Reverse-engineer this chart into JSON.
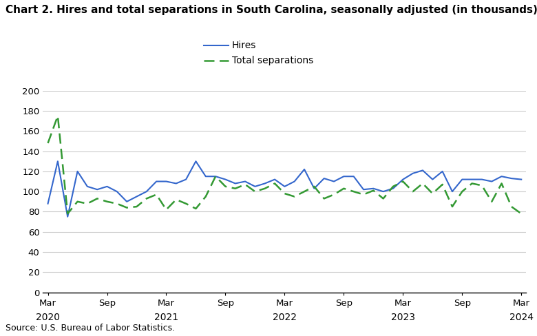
{
  "title": "Chart 2. Hires and total separations in South Carolina, seasonally adjusted (in thousands)",
  "source": "Source: U.S. Bureau of Labor Statistics.",
  "hires": [
    88,
    130,
    75,
    120,
    105,
    102,
    105,
    100,
    90,
    95,
    100,
    110,
    110,
    108,
    112,
    130,
    115,
    115,
    112,
    108,
    110,
    105,
    108,
    112,
    105,
    110,
    122,
    103,
    113,
    110,
    115,
    115,
    102,
    103,
    100,
    103,
    112,
    118,
    121,
    112,
    120,
    100,
    112,
    112,
    112,
    110,
    115,
    113,
    112
  ],
  "separations": [
    148,
    175,
    78,
    90,
    88,
    93,
    90,
    88,
    84,
    85,
    93,
    97,
    82,
    92,
    88,
    83,
    95,
    115,
    105,
    103,
    107,
    100,
    103,
    108,
    98,
    95,
    100,
    105,
    93,
    97,
    103,
    100,
    97,
    101,
    93,
    105,
    110,
    100,
    108,
    98,
    107,
    85,
    100,
    108,
    106,
    90,
    108,
    85,
    78
  ],
  "x_tick_positions": [
    0,
    6,
    12,
    18,
    24,
    30,
    36,
    42,
    48
  ],
  "x_tick_labels_top": [
    "Mar",
    "Sep",
    "Mar",
    "Sep",
    "Mar",
    "Sep",
    "Mar",
    "Sep",
    "Mar"
  ],
  "x_tick_labels_bottom": [
    "2020",
    "",
    "2021",
    "",
    "2022",
    "",
    "2023",
    "",
    "2024"
  ],
  "ylim": [
    0,
    200
  ],
  "yticks": [
    0,
    20,
    40,
    60,
    80,
    100,
    120,
    140,
    160,
    180,
    200
  ],
  "hires_color": "#3366cc",
  "separations_color": "#339933",
  "background_color": "#ffffff",
  "grid_color": "#cccccc",
  "title_fontsize": 11,
  "legend_fontsize": 10,
  "tick_fontsize": 9.5,
  "source_fontsize": 9
}
